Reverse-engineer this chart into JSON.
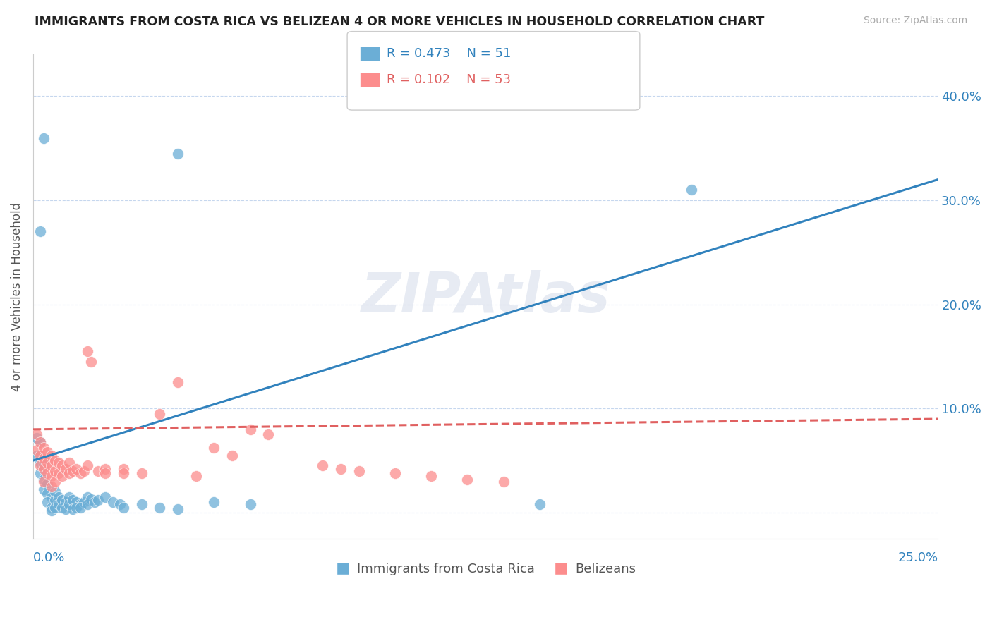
{
  "title": "IMMIGRANTS FROM COSTA RICA VS BELIZEAN 4 OR MORE VEHICLES IN HOUSEHOLD CORRELATION CHART",
  "source": "Source: ZipAtlas.com",
  "ylabel": "4 or more Vehicles in Household",
  "xlim": [
    0.0,
    0.25
  ],
  "ylim": [
    -0.025,
    0.44
  ],
  "r_blue": 0.473,
  "n_blue": 51,
  "r_pink": 0.102,
  "n_pink": 53,
  "blue_color": "#6baed6",
  "pink_color": "#fc8d8d",
  "blue_line_color": "#3182bd",
  "pink_line_color": "#e06060",
  "legend_label_blue": "Immigrants from Costa Rica",
  "legend_label_pink": "Belizeans",
  "watermark": "ZIPAtlas",
  "blue_scatter_x": [
    0.001,
    0.002,
    0.001,
    0.002,
    0.003,
    0.002,
    0.003,
    0.003,
    0.004,
    0.004,
    0.005,
    0.004,
    0.005,
    0.006,
    0.005,
    0.006,
    0.007,
    0.006,
    0.007,
    0.008,
    0.008,
    0.009,
    0.01,
    0.009,
    0.01,
    0.011,
    0.012,
    0.011,
    0.013,
    0.012,
    0.014,
    0.013,
    0.015,
    0.016,
    0.015,
    0.017,
    0.018,
    0.02,
    0.022,
    0.024,
    0.025,
    0.03,
    0.035,
    0.04,
    0.05,
    0.06,
    0.14,
    0.182,
    0.002,
    0.003,
    0.04
  ],
  "blue_scatter_y": [
    0.072,
    0.068,
    0.055,
    0.048,
    0.045,
    0.038,
    0.032,
    0.022,
    0.028,
    0.018,
    0.015,
    0.01,
    0.005,
    0.012,
    0.002,
    0.02,
    0.015,
    0.005,
    0.008,
    0.012,
    0.005,
    0.01,
    0.015,
    0.003,
    0.008,
    0.012,
    0.01,
    0.003,
    0.008,
    0.005,
    0.01,
    0.005,
    0.015,
    0.013,
    0.008,
    0.01,
    0.012,
    0.015,
    0.01,
    0.008,
    0.005,
    0.008,
    0.005,
    0.003,
    0.01,
    0.008,
    0.008,
    0.31,
    0.27,
    0.36,
    0.345
  ],
  "pink_scatter_x": [
    0.001,
    0.001,
    0.002,
    0.002,
    0.002,
    0.003,
    0.003,
    0.003,
    0.003,
    0.004,
    0.004,
    0.004,
    0.005,
    0.005,
    0.005,
    0.005,
    0.006,
    0.006,
    0.006,
    0.007,
    0.007,
    0.008,
    0.008,
    0.009,
    0.01,
    0.01,
    0.011,
    0.012,
    0.013,
    0.014,
    0.015,
    0.015,
    0.016,
    0.018,
    0.02,
    0.02,
    0.025,
    0.025,
    0.03,
    0.035,
    0.04,
    0.045,
    0.05,
    0.055,
    0.06,
    0.065,
    0.08,
    0.085,
    0.09,
    0.1,
    0.11,
    0.12,
    0.13
  ],
  "pink_scatter_y": [
    0.075,
    0.06,
    0.068,
    0.055,
    0.045,
    0.062,
    0.052,
    0.042,
    0.03,
    0.058,
    0.048,
    0.038,
    0.055,
    0.045,
    0.035,
    0.025,
    0.05,
    0.04,
    0.03,
    0.048,
    0.038,
    0.045,
    0.035,
    0.042,
    0.048,
    0.038,
    0.04,
    0.042,
    0.038,
    0.04,
    0.155,
    0.045,
    0.145,
    0.04,
    0.042,
    0.038,
    0.042,
    0.038,
    0.038,
    0.095,
    0.125,
    0.035,
    0.062,
    0.055,
    0.08,
    0.075,
    0.045,
    0.042,
    0.04,
    0.038,
    0.035,
    0.032,
    0.03
  ]
}
